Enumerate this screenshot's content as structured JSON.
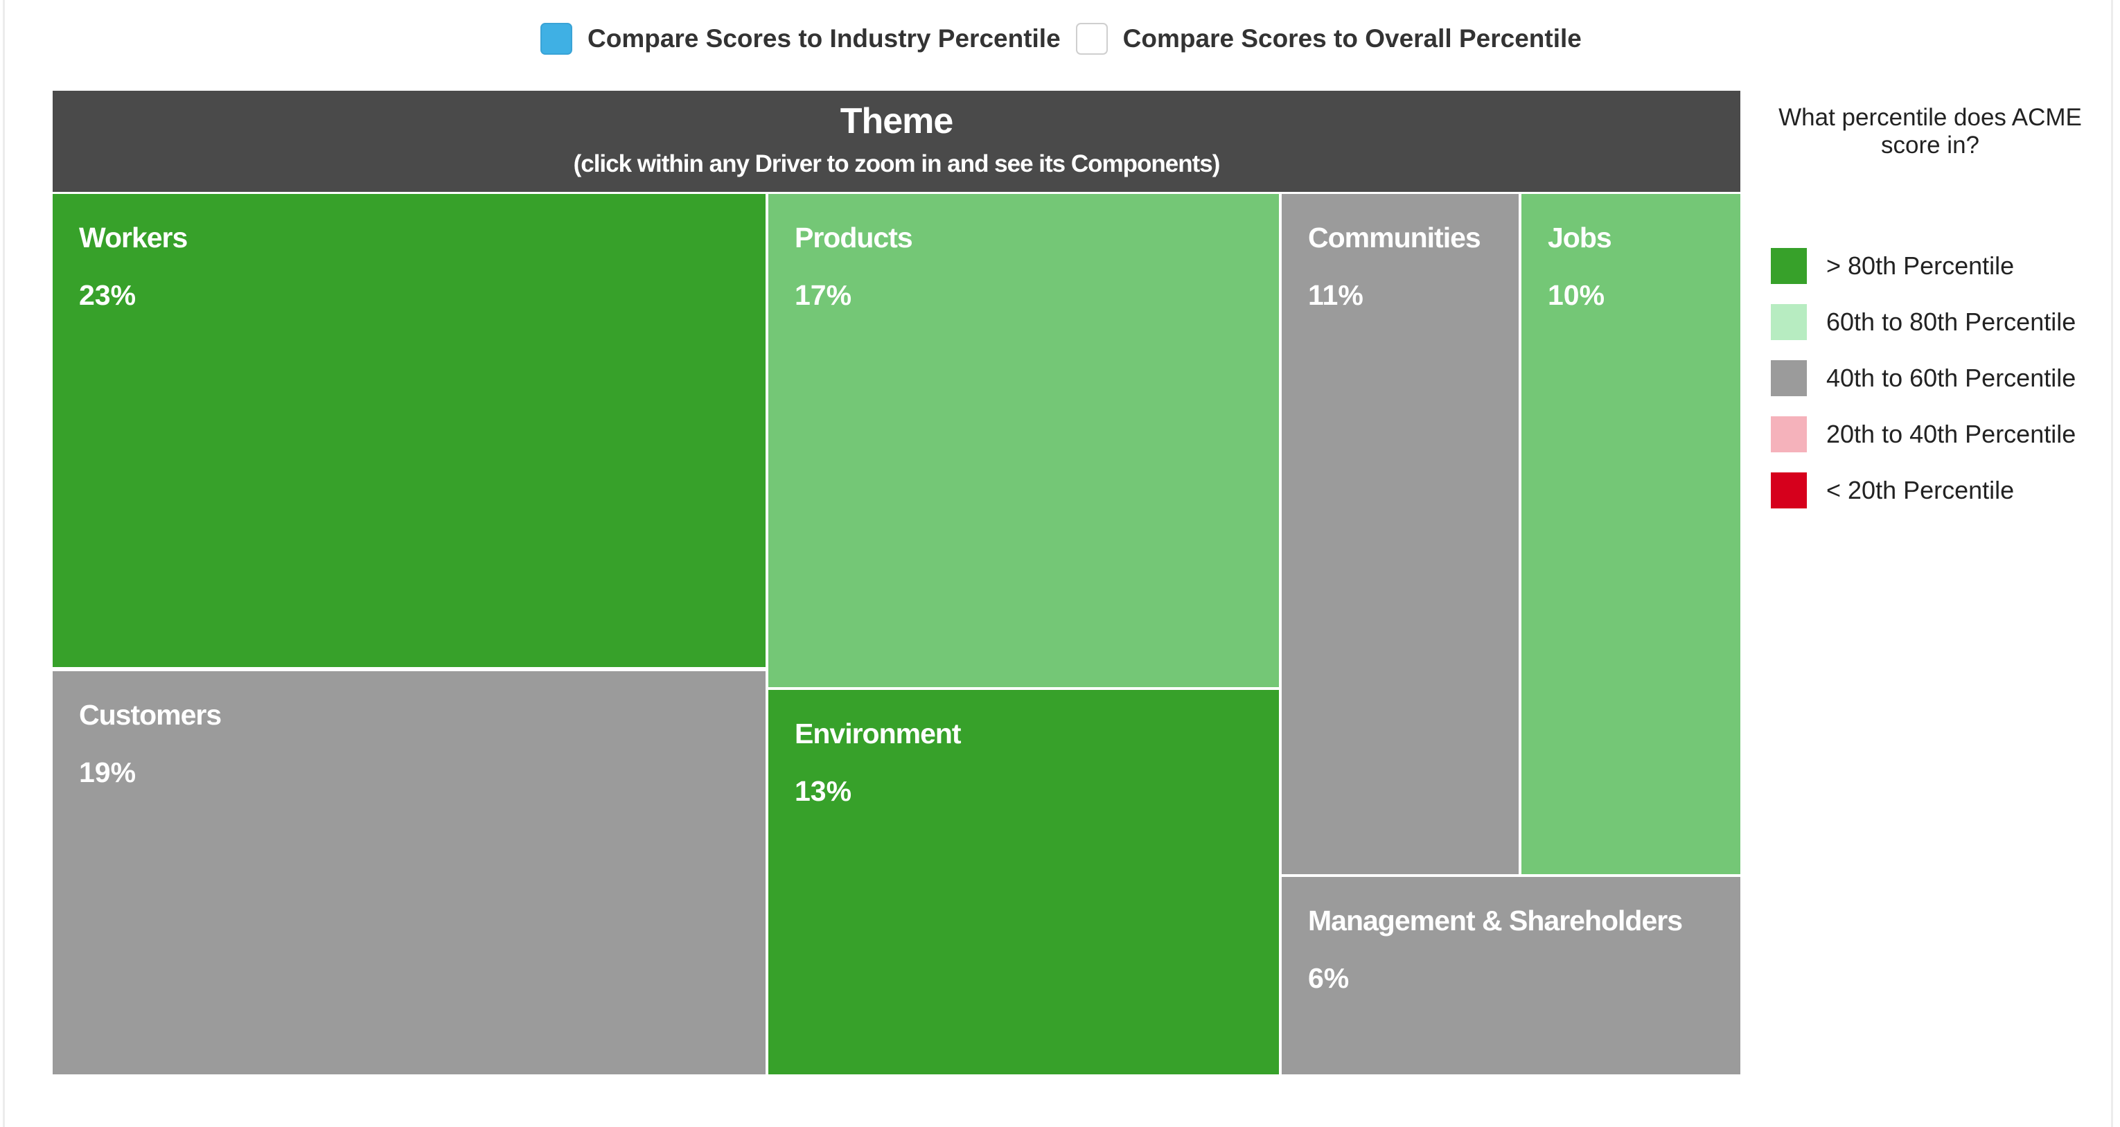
{
  "compare": {
    "options": [
      {
        "label": "Compare Scores to Industry Percentile",
        "checked": true
      },
      {
        "label": "Compare Scores to Overall Percentile",
        "checked": false
      }
    ]
  },
  "header": {
    "title": "Theme",
    "subtitle": "(click within any Driver to zoom in and see its Components)"
  },
  "legend": {
    "title": "What percentile does ACME score in?",
    "items": [
      {
        "label": "> 80th Percentile",
        "color": "#37a12a"
      },
      {
        "label": "60th to 80th Percentile",
        "color": "#b7ecc1"
      },
      {
        "label": "40th to 60th Percentile",
        "color": "#9b9b9b"
      },
      {
        "label": "20th to 40th Percentile",
        "color": "#f5b2bb"
      },
      {
        "label": "< 20th Percentile",
        "color": "#d6001c"
      }
    ]
  },
  "chart_data": {
    "type": "treemap",
    "title": "Theme",
    "subtitle": "(click within any Driver to zoom in and see its Components)",
    "nodes": [
      {
        "name": "Workers",
        "value": 23,
        "label": "23%",
        "band": "> 80th Percentile",
        "color": "#37a12a"
      },
      {
        "name": "Customers",
        "value": 19,
        "label": "19%",
        "band": "40th to 60th Percentile",
        "color": "#9b9b9b"
      },
      {
        "name": "Products",
        "value": 17,
        "label": "17%",
        "band": "60th to 80th Percentile",
        "color": "#74c776"
      },
      {
        "name": "Environment",
        "value": 13,
        "label": "13%",
        "band": "> 80th Percentile",
        "color": "#37a12a"
      },
      {
        "name": "Communities",
        "value": 11,
        "label": "11%",
        "band": "40th to 60th Percentile",
        "color": "#9b9b9b"
      },
      {
        "name": "Jobs",
        "value": 10,
        "label": "10%",
        "band": "60th to 80th Percentile",
        "color": "#74c776"
      },
      {
        "name": "Management & Shareholders",
        "value": 6,
        "label": "6%",
        "band": "40th to 60th Percentile",
        "color": "#9b9b9b"
      }
    ]
  }
}
